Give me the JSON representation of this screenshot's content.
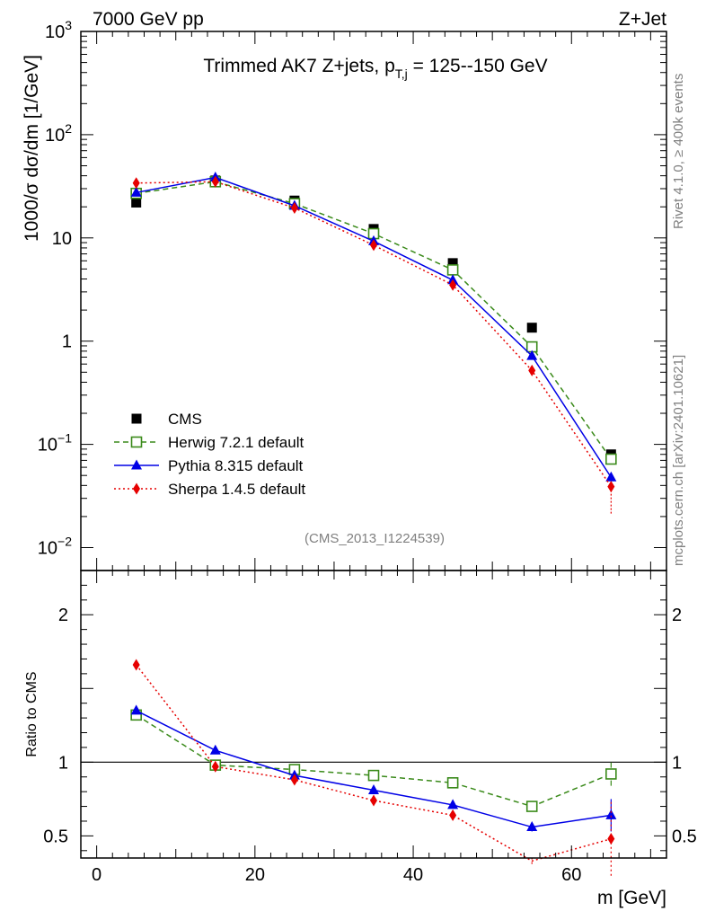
{
  "header": {
    "left": "7000 GeV pp",
    "right": "Z+Jet"
  },
  "side_labels": {
    "rivet": "Rivet 4.1.0, ≥ 400k events",
    "mcplots": "mcplots.cern.ch [arXiv:2401.10621]"
  },
  "chart_data": [
    {
      "type": "line",
      "panel": "main",
      "title_main": "Trimmed AK7 Z+jets, p",
      "title_sub": "T,j",
      "title_tail": " = 125--150 GeV",
      "ylabel": "1000/σ  dσ/dm [1/GeV]",
      "yscale": "log",
      "ylim": [
        0.006,
        1000
      ],
      "xlim": [
        -2,
        72
      ],
      "yticks": [
        {
          "v": 0.01,
          "base": "10",
          "exp": "−2"
        },
        {
          "v": 0.1,
          "base": "10",
          "exp": "−1"
        },
        {
          "v": 1,
          "base": "1",
          "exp": ""
        },
        {
          "v": 10,
          "base": "10",
          "exp": ""
        },
        {
          "v": 100,
          "base": "10",
          "exp": "2"
        },
        {
          "v": 1000,
          "base": "10",
          "exp": "3"
        }
      ],
      "watermark": "(CMS_2013_I1224539)",
      "legend_position": "bottom-left",
      "x": [
        5,
        15,
        25,
        35,
        45,
        55,
        65
      ],
      "series": [
        {
          "name": "CMS",
          "color": "#000000",
          "marker": "square-filled",
          "line": "none",
          "values": [
            22,
            36,
            23,
            12.2,
            5.7,
            1.35,
            0.08
          ]
        },
        {
          "name": "Herwig 7.2.1 default",
          "color": "#3a8a1a",
          "marker": "square-open",
          "line": "dashed",
          "values": [
            27,
            35,
            21.5,
            11,
            4.9,
            0.88,
            0.072
          ]
        },
        {
          "name": "Pythia 8.315 default",
          "color": "#0000e6",
          "marker": "triangle",
          "line": "solid",
          "values": [
            27.5,
            38.5,
            20.5,
            9.3,
            3.9,
            0.72,
            0.048
          ]
        },
        {
          "name": "Sherpa 1.4.5 default",
          "color": "#e60000",
          "marker": "diamond",
          "line": "dotted",
          "values": [
            34,
            35,
            19.5,
            8.5,
            3.5,
            0.52,
            0.039
          ],
          "yerr_low_last": 0.021
        }
      ]
    },
    {
      "type": "line",
      "panel": "ratio",
      "ylabel": "Ratio to CMS",
      "xlabel": "m [GeV]",
      "ylim": [
        0.35,
        2.3
      ],
      "xlim": [
        -2,
        72
      ],
      "xticks": [
        0,
        20,
        40,
        60
      ],
      "yticks": [
        0.5,
        1,
        2
      ],
      "x": [
        5,
        15,
        25,
        35,
        45,
        55,
        65
      ],
      "series": [
        {
          "name": "Herwig 7.2.1 default",
          "values": [
            1.32,
            0.98,
            0.95,
            0.91,
            0.86,
            0.7,
            0.92
          ],
          "err": [
            0.01,
            0.01,
            0.01,
            0.01,
            0.01,
            0.02,
            0.08
          ]
        },
        {
          "name": "Pythia 8.315 default",
          "values": [
            1.35,
            1.08,
            0.91,
            0.81,
            0.71,
            0.56,
            0.64
          ],
          "err": [
            0.01,
            0.01,
            0.01,
            0.01,
            0.01,
            0.03,
            0.11
          ]
        },
        {
          "name": "Sherpa 1.4.5 default",
          "values": [
            1.66,
            0.97,
            0.88,
            0.74,
            0.64,
            0.33,
            0.48
          ],
          "err": [
            0.01,
            0.01,
            0.01,
            0.01,
            0.02,
            0.02,
            0.25
          ]
        }
      ]
    }
  ]
}
